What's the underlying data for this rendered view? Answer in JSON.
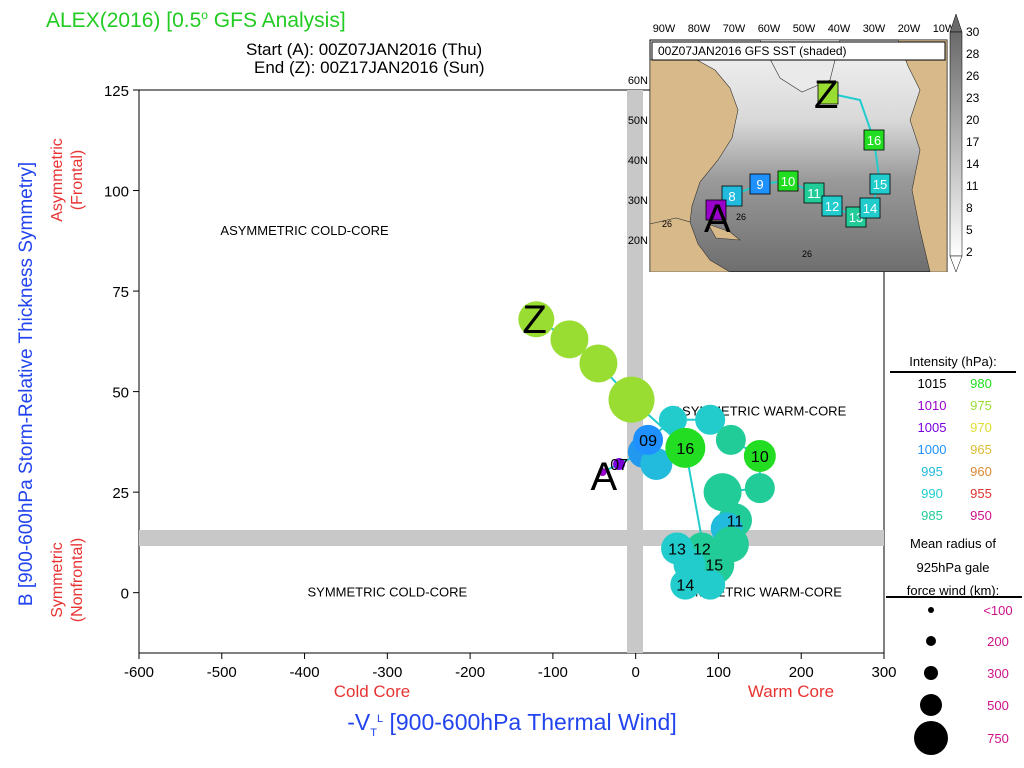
{
  "header": {
    "title_prefix": "ALEX(2016) [0.5",
    "title_degree": "o",
    "title_suffix": " GFS Analysis]",
    "start_line": "Start (A): 00Z07JAN2016 (Thu)",
    "end_line": "End (Z): 00Z17JAN2016 (Sun)"
  },
  "chart_data": {
    "type": "scatter",
    "xlabel": "-V",
    "xlabel_sub": "T",
    "xlabel_sup": "L",
    "xlabel_rest": " [900-600hPa Thermal Wind]",
    "ylabel": "B [900-600hPa Storm-Relative Thickness Symmetry]",
    "ylabel_top": [
      "Asymmetric",
      "(Frontal)"
    ],
    "ylabel_bottom": [
      "Symmetric",
      "(Nonfrontal)"
    ],
    "x_left_label": "Cold Core",
    "x_right_label": "Warm Core",
    "xlim": [
      -600,
      300
    ],
    "ylim": [
      -15,
      125
    ],
    "xticks": [
      -600,
      -500,
      -400,
      -300,
      -200,
      -100,
      0,
      100,
      200,
      300
    ],
    "yticks": [
      0,
      25,
      50,
      75,
      100,
      125
    ],
    "quadrants": {
      "top_left": "ASYMMETRIC COLD-CORE",
      "top_right": "ASYMMETRIC WARM-CORE",
      "bottom_left": "SYMMETRIC COLD-CORE",
      "bottom_right": "SYMMETRIC WARM-CORE"
    },
    "start_marker": "A",
    "end_marker": "Z",
    "points": [
      {
        "x": -40,
        "y": 30,
        "r": 4,
        "c": "#9900cc",
        "label": ""
      },
      {
        "x": -20,
        "y": 32,
        "r": 6,
        "c": "#7a00e0",
        "label": "07"
      },
      {
        "x": 10,
        "y": 35,
        "r": 16,
        "c": "#2299ee",
        "label": ""
      },
      {
        "x": 25,
        "y": 32,
        "r": 16,
        "c": "#22bbdd",
        "label": ""
      },
      {
        "x": 15,
        "y": 38,
        "r": 15,
        "c": "#1e90ff",
        "label": "09"
      },
      {
        "x": 45,
        "y": 43,
        "r": 14,
        "c": "#22cccc",
        "label": ""
      },
      {
        "x": 90,
        "y": 43,
        "r": 15,
        "c": "#22cccc",
        "label": ""
      },
      {
        "x": 115,
        "y": 38,
        "r": 15,
        "c": "#22cc99",
        "label": ""
      },
      {
        "x": 150,
        "y": 34,
        "r": 16,
        "c": "#22dd22",
        "label": "10"
      },
      {
        "x": 150,
        "y": 26,
        "r": 15,
        "c": "#22cc99",
        "label": ""
      },
      {
        "x": 105,
        "y": 25,
        "r": 19,
        "c": "#22cc99",
        "label": ""
      },
      {
        "x": 120,
        "y": 18,
        "r": 17,
        "c": "#22cc99",
        "label": "11"
      },
      {
        "x": 110,
        "y": 16,
        "r": 16,
        "c": "#22bbdd",
        "label": ""
      },
      {
        "x": 115,
        "y": 12,
        "r": 18,
        "c": "#22cc99",
        "label": ""
      },
      {
        "x": 80,
        "y": 11,
        "r": 16,
        "c": "#22cc99",
        "label": "12"
      },
      {
        "x": 50,
        "y": 11,
        "r": 16,
        "c": "#22cccc",
        "label": "13"
      },
      {
        "x": 95,
        "y": 7,
        "r": 20,
        "c": "#22cc99",
        "label": "15"
      },
      {
        "x": 65,
        "y": 7,
        "r": 16,
        "c": "#22cccc",
        "label": ""
      },
      {
        "x": 60,
        "y": 2,
        "r": 15,
        "c": "#22cccc",
        "label": "14"
      },
      {
        "x": 90,
        "y": 2,
        "r": 15,
        "c": "#22cccc",
        "label": ""
      },
      {
        "x": 60,
        "y": 36,
        "r": 20,
        "c": "#22dd22",
        "label": "16"
      },
      {
        "x": -5,
        "y": 48,
        "r": 23,
        "c": "#99dd33",
        "label": ""
      },
      {
        "x": -45,
        "y": 57,
        "r": 19,
        "c": "#99dd33",
        "label": ""
      },
      {
        "x": -80,
        "y": 63,
        "r": 19,
        "c": "#99dd33",
        "label": ""
      },
      {
        "x": -120,
        "y": 68,
        "r": 18,
        "c": "#99dd33",
        "label": ""
      }
    ]
  },
  "legend": {
    "intensity_title": "Intensity (hPa):",
    "intensity_rows": [
      {
        "left": "1015",
        "left_color": "#000000",
        "right": "980",
        "right_color": "#22dd22"
      },
      {
        "left": "1010",
        "left_color": "#9900cc",
        "right": "975",
        "right_color": "#99dd33"
      },
      {
        "left": "1005",
        "left_color": "#7a00e0",
        "right": "970",
        "right_color": "#dddd33"
      },
      {
        "left": "1000",
        "left_color": "#1e90ff",
        "right": "965",
        "right_color": "#ddbb33"
      },
      {
        "left": "995",
        "left_color": "#22bbdd",
        "right": "960",
        "right_color": "#dd8833"
      },
      {
        "left": "990",
        "left_color": "#22cccc",
        "right": "955",
        "right_color": "#dd3333"
      },
      {
        "left": "985",
        "left_color": "#22cc99",
        "right": "950",
        "right_color": "#cc1188"
      }
    ],
    "radius_title": [
      "Mean radius of",
      "925hPa gale",
      "force wind (km):"
    ],
    "radius_rows": [
      {
        "label": "<100",
        "r": 3
      },
      {
        "label": "200",
        "r": 5
      },
      {
        "label": "300",
        "r": 7
      },
      {
        "label": "500",
        "r": 11
      },
      {
        "label": "750",
        "r": 17
      }
    ],
    "radius_label_color": "#cc1188"
  },
  "inset": {
    "title": "00Z07JAN2016 GFS SST (shaded)",
    "lon_labels": [
      "90W",
      "80W",
      "70W",
      "60W",
      "50W",
      "40W",
      "30W",
      "20W",
      "10W"
    ],
    "lat_labels": [
      "60N",
      "50N",
      "40N",
      "30N",
      "20N"
    ],
    "colorbar_labels": [
      "30",
      "28",
      "26",
      "23",
      "20",
      "17",
      "14",
      "11",
      "8",
      "5",
      "2"
    ],
    "sst_contour_labels": [
      "26",
      "26",
      "26"
    ],
    "start_marker": "A",
    "end_marker": "Z",
    "track_boxes": [
      {
        "label": "8",
        "c": "#22bbdd"
      },
      {
        "label": "9",
        "c": "#1e90ff"
      },
      {
        "label": "10",
        "c": "#22dd22"
      },
      {
        "label": "11",
        "c": "#22cc99"
      },
      {
        "label": "12",
        "c": "#22cccc"
      },
      {
        "label": "13",
        "c": "#22cc99"
      },
      {
        "label": "14",
        "c": "#22cccc"
      },
      {
        "label": "15",
        "c": "#22cccc"
      },
      {
        "label": "16",
        "c": "#22dd22"
      }
    ]
  }
}
